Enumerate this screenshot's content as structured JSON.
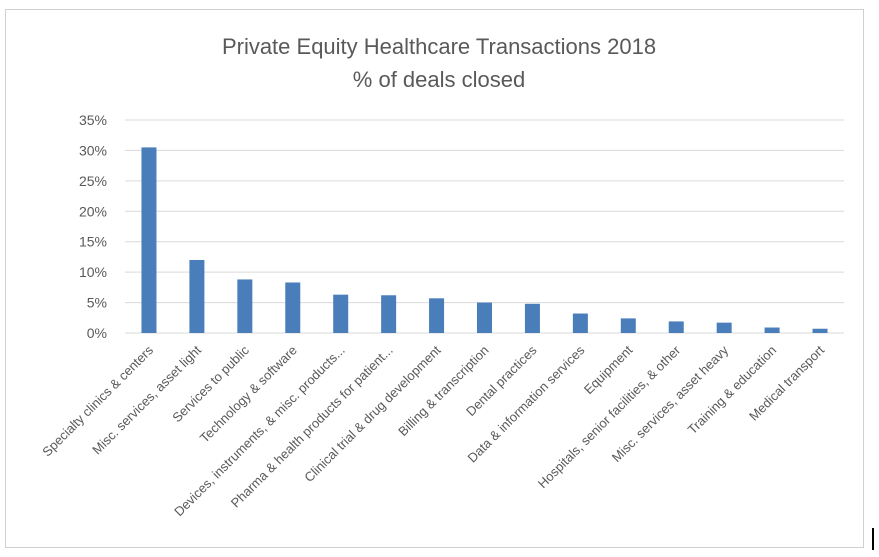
{
  "chart_data": {
    "type": "bar",
    "title": "Private Equity Healthcare Transactions 2018",
    "subtitle": "% of deals closed",
    "xlabel": "",
    "ylabel": "",
    "ylim": [
      0,
      35
    ],
    "yticks": [
      "0%",
      "5%",
      "10%",
      "15%",
      "20%",
      "25%",
      "30%",
      "35%"
    ],
    "ytick_values": [
      0,
      5,
      10,
      15,
      20,
      25,
      30,
      35
    ],
    "grid": true,
    "legend": "none",
    "bar_color": "#4a7ebb",
    "categories": [
      "Specialty clinics & centers",
      "Misc. services, asset light",
      "Services to public",
      "Technology & software",
      "Devices, instruments, & misc. products...",
      "Pharma & health products for patient...",
      "Clinical trial & drug development",
      "Billing & transcription",
      "Dental practices",
      "Data & information services",
      "Equipment",
      "Hospitals, senior facilities, & other",
      "Misc. services, asset heavy",
      "Training & education",
      "Medical transport"
    ],
    "values": [
      30.5,
      12.0,
      8.8,
      8.3,
      6.3,
      6.2,
      5.7,
      5.0,
      4.8,
      3.2,
      2.4,
      1.9,
      1.7,
      0.9,
      0.7
    ]
  }
}
